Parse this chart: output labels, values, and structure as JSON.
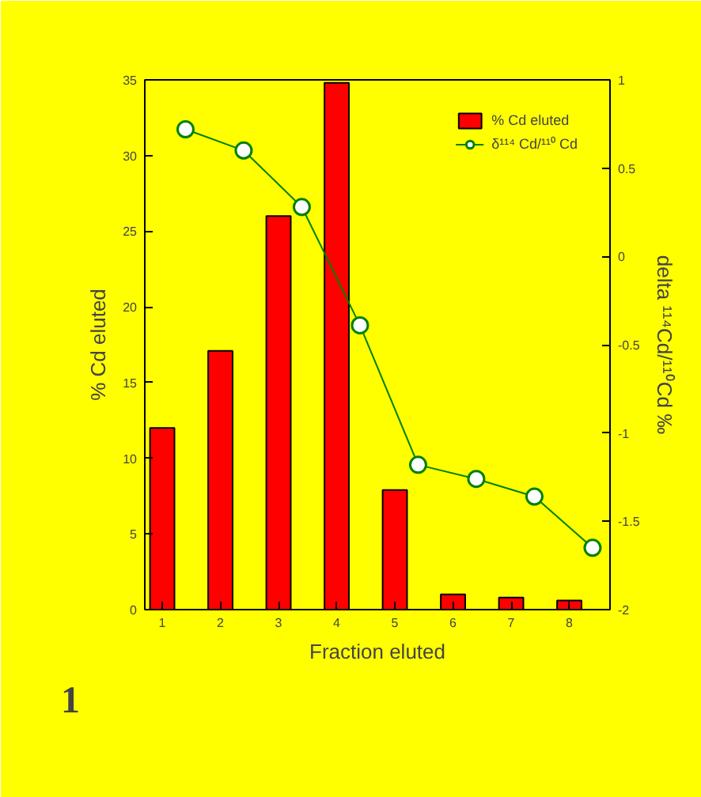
{
  "chart_data": {
    "type": "bar",
    "xlabel": "Fraction eluted",
    "ylabel": "% Cd eluted",
    "y2label": "delta ¹¹⁴Cd/¹¹⁰Cd ‰",
    "x": [
      1,
      2,
      3,
      4,
      5,
      6,
      7,
      8
    ],
    "xlim": [
      0.7,
      8.7
    ],
    "xticks": [
      1,
      2,
      3,
      4,
      5,
      6,
      7,
      8
    ],
    "ylim": [
      0,
      35
    ],
    "yticks": [
      0,
      5,
      10,
      15,
      20,
      25,
      30,
      35
    ],
    "y2lim": [
      -2,
      1
    ],
    "y2ticks": [
      -2,
      -1.5,
      -1,
      -0.5,
      0,
      0.5,
      1
    ],
    "series": [
      {
        "name": "% Cd eluted",
        "color": "#ff0000",
        "values": [
          12,
          17.1,
          26,
          34.8,
          7.9,
          1.0,
          0.8,
          0.6
        ]
      },
      {
        "name": "δ¹¹⁴ Cd/¹¹⁰ Cd",
        "type": "line",
        "axis": "y2",
        "color": "#008000",
        "marker": "circle",
        "x": [
          1.4,
          2.4,
          3.4,
          4.4,
          5.4,
          6.4,
          7.4,
          8.4
        ],
        "values": [
          0.72,
          0.6,
          0.28,
          -0.39,
          -1.18,
          -1.26,
          -1.36,
          -1.65
        ]
      }
    ],
    "legend": "top right",
    "grid": false,
    "annotations": [
      "1"
    ]
  }
}
